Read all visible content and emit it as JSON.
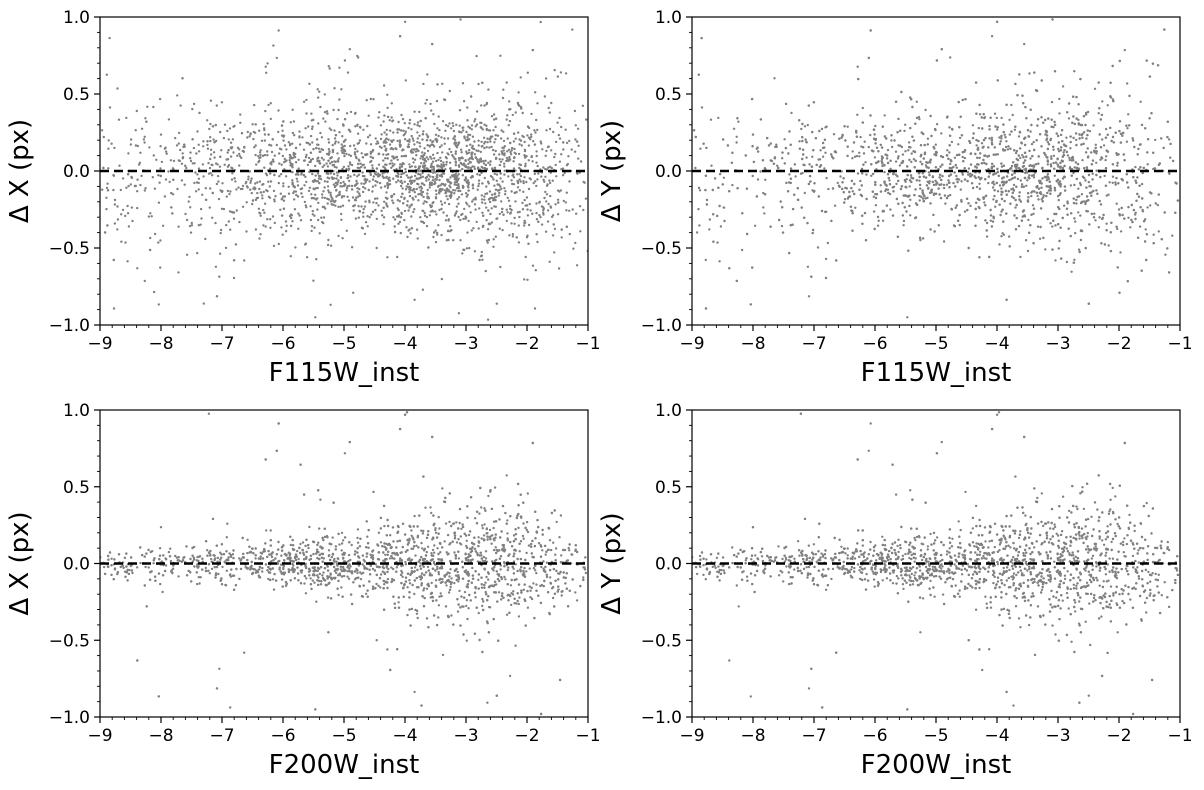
{
  "chart_data": [
    {
      "type": "scatter",
      "panel": "top-left",
      "xlabel": "F115W_inst",
      "ylabel": "Δ X (px)",
      "xlim": [
        -9,
        -1
      ],
      "ylim": [
        -1.0,
        1.0
      ],
      "xticks": [
        -9,
        -8,
        -7,
        -6,
        -5,
        -4,
        -3,
        -2,
        -1
      ],
      "xtick_labels": [
        "−9",
        "−8",
        "−7",
        "−6",
        "−5",
        "−4",
        "−3",
        "−2",
        "−1"
      ],
      "yticks": [
        -1.0,
        -0.5,
        0.0,
        0.5,
        1.0
      ],
      "ytick_labels": [
        "−1.0",
        "−0.5",
        "0.0",
        "0.5",
        "1.0"
      ],
      "reference_line_y": 0.0,
      "point_color": "#808080",
      "density_profile": {
        "magnitude": [
          -9,
          -8,
          -7,
          -6,
          -5,
          -4,
          -3,
          -2,
          -1
        ],
        "spread_px": [
          0.3,
          0.28,
          0.25,
          0.22,
          0.2,
          0.18,
          0.22,
          0.25,
          0.3
        ],
        "relative_density": [
          0.15,
          0.2,
          0.3,
          0.45,
          0.65,
          0.9,
          1.0,
          0.55,
          0.1
        ]
      },
      "grid": false,
      "legend": "none"
    },
    {
      "type": "scatter",
      "panel": "top-right",
      "xlabel": "F115W_inst",
      "ylabel": "Δ Y (px)",
      "xlim": [
        -9,
        -1
      ],
      "ylim": [
        -1.0,
        1.0
      ],
      "xticks": [
        -9,
        -8,
        -7,
        -6,
        -5,
        -4,
        -3,
        -2,
        -1
      ],
      "xtick_labels": [
        "−9",
        "−8",
        "−7",
        "−6",
        "−5",
        "−4",
        "−3",
        "−2",
        "−1"
      ],
      "yticks": [
        -1.0,
        -0.5,
        0.0,
        0.5,
        1.0
      ],
      "ytick_labels": [
        "−1.0",
        "−0.5",
        "0.0",
        "0.5",
        "1.0"
      ],
      "reference_line_y": 0.0,
      "point_color": "#808080",
      "density_profile": {
        "magnitude": [
          -9,
          -8,
          -7,
          -6,
          -5,
          -4,
          -3,
          -2,
          -1
        ],
        "spread_px": [
          0.3,
          0.28,
          0.25,
          0.2,
          0.18,
          0.2,
          0.25,
          0.28,
          0.32
        ],
        "relative_density": [
          0.15,
          0.2,
          0.3,
          0.45,
          0.65,
          0.9,
          1.0,
          0.55,
          0.1
        ]
      },
      "grid": false,
      "legend": "none"
    },
    {
      "type": "scatter",
      "panel": "bottom-left",
      "xlabel": "F200W_inst",
      "ylabel": "Δ X (px)",
      "xlim": [
        -9,
        -1
      ],
      "ylim": [
        -1.0,
        1.0
      ],
      "xticks": [
        -9,
        -8,
        -7,
        -6,
        -5,
        -4,
        -3,
        -2,
        -1
      ],
      "xtick_labels": [
        "−9",
        "−8",
        "−7",
        "−6",
        "−5",
        "−4",
        "−3",
        "−2",
        "−1"
      ],
      "yticks": [
        -1.0,
        -0.5,
        0.0,
        0.5,
        1.0
      ],
      "ytick_labels": [
        "−1.0",
        "−0.5",
        "0.0",
        "0.5",
        "1.0"
      ],
      "reference_line_y": 0.0,
      "point_color": "#808080",
      "density_profile": {
        "magnitude": [
          -9,
          -8,
          -7,
          -6,
          -5,
          -4,
          -3,
          -2,
          -1
        ],
        "spread_px": [
          0.05,
          0.06,
          0.07,
          0.08,
          0.1,
          0.14,
          0.2,
          0.18,
          0.1
        ],
        "relative_density": [
          0.2,
          0.25,
          0.35,
          0.5,
          0.65,
          0.85,
          1.0,
          0.75,
          0.25
        ]
      },
      "grid": false,
      "legend": "none"
    },
    {
      "type": "scatter",
      "panel": "bottom-right",
      "xlabel": "F200W_inst",
      "ylabel": "Δ Y (px)",
      "xlim": [
        -9,
        -1
      ],
      "ylim": [
        -1.0,
        1.0
      ],
      "xticks": [
        -9,
        -8,
        -7,
        -6,
        -5,
        -4,
        -3,
        -2,
        -1
      ],
      "xtick_labels": [
        "−9",
        "−8",
        "−7",
        "−6",
        "−5",
        "−4",
        "−3",
        "−2",
        "−1"
      ],
      "yticks": [
        -1.0,
        -0.5,
        0.0,
        0.5,
        1.0
      ],
      "ytick_labels": [
        "−1.0",
        "−0.5",
        "0.0",
        "0.5",
        "1.0"
      ],
      "reference_line_y": 0.0,
      "point_color": "#808080",
      "density_profile": {
        "magnitude": [
          -9,
          -8,
          -7,
          -6,
          -5,
          -4,
          -3,
          -2,
          -1
        ],
        "spread_px": [
          0.05,
          0.06,
          0.07,
          0.08,
          0.1,
          0.14,
          0.2,
          0.2,
          0.12
        ],
        "relative_density": [
          0.2,
          0.25,
          0.35,
          0.5,
          0.65,
          0.85,
          1.0,
          0.75,
          0.25
        ]
      },
      "grid": false,
      "legend": "none"
    }
  ]
}
